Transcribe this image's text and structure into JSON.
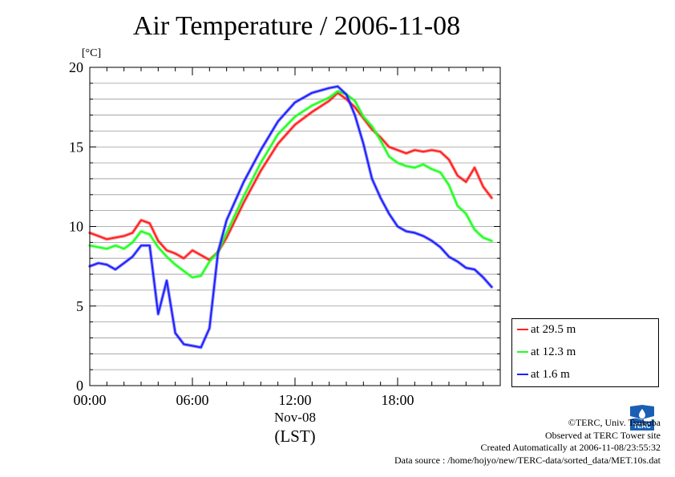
{
  "chart_data": {
    "type": "line",
    "title": "Air Temperature / 2006-11-08",
    "unit_label": "[°C]",
    "xlabel_date": "Nov-08",
    "xlabel_tz": "(LST)",
    "x_ticks": [
      "00:00",
      "06:00",
      "12:00",
      "18:00"
    ],
    "y_ticks": [
      "0",
      "5",
      "10",
      "15",
      "20"
    ],
    "xlim_hours": [
      0,
      24
    ],
    "ylim": [
      0,
      20
    ],
    "grid": "horizontal",
    "legend_placement": "lower-right, outside plot",
    "x_hours": [
      0,
      0.5,
      1,
      1.5,
      2,
      2.5,
      3,
      3.5,
      4,
      4.5,
      5,
      5.5,
      6,
      6.5,
      7,
      7.5,
      8,
      9,
      10,
      11,
      12,
      13,
      14,
      14.5,
      15,
      15.5,
      16,
      16.5,
      17,
      17.5,
      18,
      18.5,
      19,
      19.5,
      20,
      20.5,
      21,
      21.5,
      22,
      22.5,
      23,
      23.5
    ],
    "series": [
      {
        "name": "at 29.5 m",
        "color": "#ff2020",
        "values": [
          9.6,
          9.4,
          9.2,
          9.3,
          9.4,
          9.6,
          10.4,
          10.2,
          9.1,
          8.5,
          8.3,
          8.0,
          8.5,
          8.2,
          7.9,
          8.4,
          9.3,
          11.5,
          13.5,
          15.2,
          16.4,
          17.2,
          17.9,
          18.4,
          18.0,
          17.5,
          16.8,
          16.1,
          15.6,
          15.0,
          14.8,
          14.6,
          14.8,
          14.7,
          14.8,
          14.7,
          14.2,
          13.2,
          12.8,
          13.7,
          12.5,
          11.8
        ]
      },
      {
        "name": "at 12.3 m",
        "color": "#20ff20",
        "values": [
          8.8,
          8.7,
          8.6,
          8.8,
          8.6,
          9.0,
          9.7,
          9.5,
          8.7,
          8.1,
          7.6,
          7.2,
          6.8,
          6.9,
          7.8,
          8.4,
          9.6,
          11.9,
          14.0,
          15.8,
          16.9,
          17.6,
          18.1,
          18.5,
          18.3,
          17.9,
          16.9,
          16.3,
          15.4,
          14.4,
          14.0,
          13.8,
          13.7,
          13.9,
          13.6,
          13.4,
          12.6,
          11.3,
          10.8,
          9.8,
          9.3,
          9.1
        ]
      },
      {
        "name": "at 1.6 m",
        "color": "#2020ff",
        "values": [
          7.5,
          7.7,
          7.6,
          7.3,
          7.7,
          8.1,
          8.8,
          8.8,
          4.5,
          6.6,
          3.3,
          2.6,
          2.5,
          2.4,
          3.6,
          8.4,
          10.4,
          12.8,
          14.8,
          16.6,
          17.8,
          18.4,
          18.7,
          18.8,
          18.3,
          17.0,
          15.2,
          13.0,
          11.8,
          10.8,
          10.0,
          9.7,
          9.6,
          9.4,
          9.1,
          8.7,
          8.1,
          7.8,
          7.4,
          7.3,
          6.8,
          6.2
        ]
      }
    ]
  },
  "legend": {
    "items": [
      {
        "label": "at 29.5 m",
        "color": "#ff2020"
      },
      {
        "label": "at 12.3 m",
        "color": "#20ff20"
      },
      {
        "label": "at 1.6 m",
        "color": "#2020ff"
      }
    ]
  },
  "footer": {
    "copyright": "©TERC, Univ. Tsukuba",
    "observed": "Observed at TERC Tower site",
    "created": "Created Automatically at 2006-11-08/23:55:32",
    "source": "Data source : /home/hojyo/new/TERC-data/sorted_data/MET.10s.dat"
  },
  "logo": {
    "icon": "terc-logo-icon",
    "text": "TERC",
    "color": "#1a5fb4"
  }
}
